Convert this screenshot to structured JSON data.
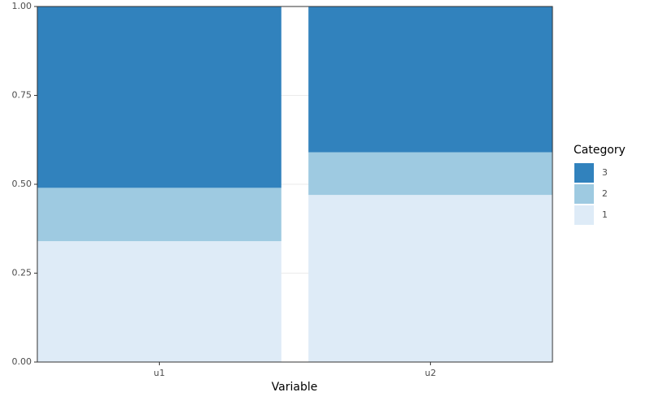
{
  "chart_data": {
    "type": "stacked_bar",
    "x_label": "Variable",
    "legend_title": "Category",
    "categories": [
      "u1",
      "u2"
    ],
    "series": [
      {
        "name": "1",
        "color": "#deebf7",
        "values": [
          0.34,
          0.47
        ]
      },
      {
        "name": "2",
        "color": "#9ecae1",
        "values": [
          0.15,
          0.12
        ]
      },
      {
        "name": "3",
        "color": "#3182bd",
        "values": [
          0.51,
          0.41
        ]
      }
    ],
    "ylim": [
      0,
      1
    ],
    "yticks": [
      {
        "value": 0,
        "label": "0.00"
      },
      {
        "value": 0.25,
        "label": "0.25"
      },
      {
        "value": 0.5,
        "label": "0.50"
      },
      {
        "value": 0.75,
        "label": "0.75"
      },
      {
        "value": 1,
        "label": "1.00"
      }
    ],
    "grid": true,
    "legend_position": "right"
  }
}
